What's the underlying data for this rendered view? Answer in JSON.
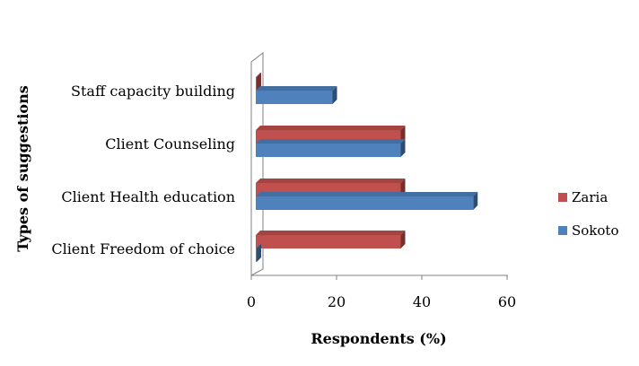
{
  "chart_data": {
    "type": "bar",
    "orientation": "horizontal",
    "three_d": true,
    "categories": [
      "Client Freedom of choice",
      "Client Health education",
      "Client Counseling",
      "Staff capacity building"
    ],
    "series": [
      {
        "name": "Sokoto",
        "color": "#4f81bd",
        "values": [
          0,
          51,
          34,
          18
        ]
      },
      {
        "name": "Zaria",
        "color": "#c0504d",
        "values": [
          34,
          34,
          34,
          0
        ]
      }
    ],
    "xlabel": "Respondents (%)",
    "ylabel": "Types of suggestions",
    "xlim": [
      0,
      60
    ],
    "xticks": [
      "0",
      "20",
      "40",
      "60"
    ],
    "grid": false,
    "legend_position": "right"
  }
}
